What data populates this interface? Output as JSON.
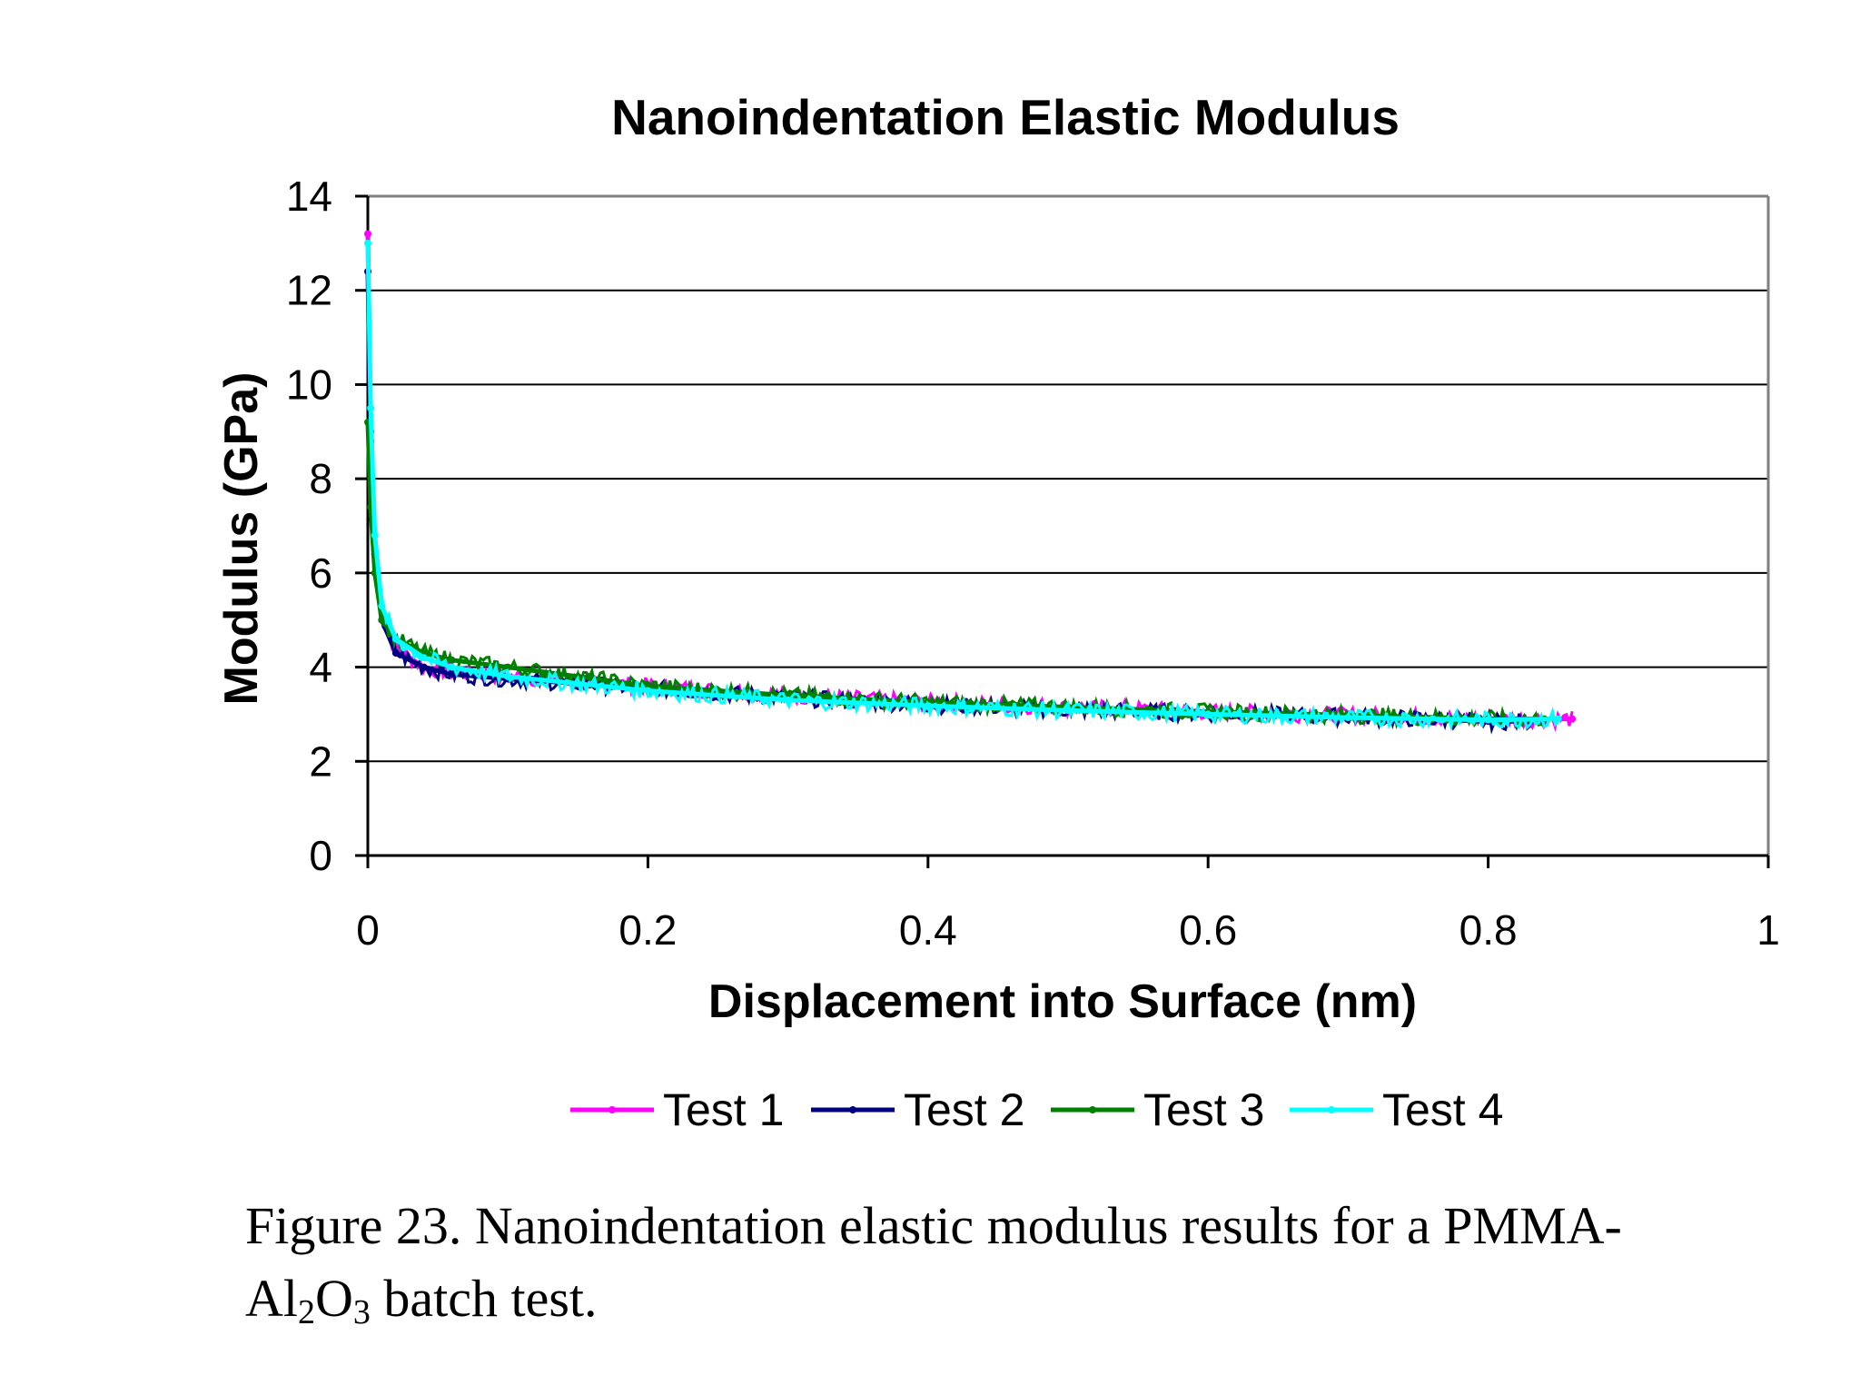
{
  "chart_data": {
    "type": "scatter",
    "title": "Nanoindentation Elastic Modulus",
    "xlabel": "Displacement into Surface (nm)",
    "ylabel": "Modulus (GPa)",
    "xlim": [
      0,
      1
    ],
    "ylim": [
      0,
      14
    ],
    "xticks": [
      0,
      0.2,
      0.4,
      0.6,
      0.8,
      1
    ],
    "xtick_labels": [
      "0",
      "0.2",
      "0.4",
      "0.6",
      "0.8",
      "1"
    ],
    "yticks": [
      0,
      2,
      4,
      6,
      8,
      10,
      12,
      14
    ],
    "ytick_labels": [
      "0",
      "2",
      "4",
      "6",
      "8",
      "10",
      "12",
      "14"
    ],
    "grid": "horizontal",
    "legend_position": "bottom",
    "series": [
      {
        "name": "Test 1",
        "color": "#ff00ff",
        "x": [
          0,
          0.002,
          0.005,
          0.01,
          0.02,
          0.04,
          0.06,
          0.1,
          0.15,
          0.2,
          0.3,
          0.4,
          0.5,
          0.6,
          0.7,
          0.8,
          0.86
        ],
        "y": [
          13.2,
          9.0,
          6.5,
          5.0,
          4.4,
          4.0,
          3.9,
          3.8,
          3.7,
          3.6,
          3.4,
          3.25,
          3.15,
          3.05,
          2.98,
          2.9,
          2.9
        ]
      },
      {
        "name": "Test 2",
        "color": "#000080",
        "x": [
          0,
          0.002,
          0.005,
          0.01,
          0.02,
          0.04,
          0.06,
          0.1,
          0.15,
          0.2,
          0.3,
          0.4,
          0.5,
          0.6,
          0.7,
          0.8,
          0.83
        ],
        "y": [
          12.4,
          8.8,
          6.4,
          5.0,
          4.3,
          4.0,
          3.85,
          3.75,
          3.65,
          3.55,
          3.35,
          3.2,
          3.1,
          3.02,
          2.95,
          2.85,
          2.85
        ]
      },
      {
        "name": "Test 3",
        "color": "#008000",
        "x": [
          0,
          0.002,
          0.005,
          0.01,
          0.02,
          0.04,
          0.06,
          0.1,
          0.15,
          0.2,
          0.3,
          0.4,
          0.5,
          0.6,
          0.7,
          0.8,
          0.84
        ],
        "y": [
          9.2,
          7.4,
          6.0,
          5.0,
          4.6,
          4.3,
          4.15,
          4.0,
          3.8,
          3.6,
          3.4,
          3.25,
          3.15,
          3.05,
          2.98,
          2.9,
          2.9
        ]
      },
      {
        "name": "Test 4",
        "color": "#00ffff",
        "x": [
          0,
          0.002,
          0.005,
          0.01,
          0.02,
          0.04,
          0.06,
          0.1,
          0.15,
          0.2,
          0.3,
          0.4,
          0.5,
          0.6,
          0.7,
          0.8,
          0.85
        ],
        "y": [
          13.0,
          9.5,
          6.8,
          5.3,
          4.6,
          4.2,
          4.0,
          3.8,
          3.65,
          3.5,
          3.3,
          3.18,
          3.08,
          3.0,
          2.93,
          2.88,
          2.9
        ]
      }
    ]
  },
  "caption": {
    "prefix": "Figure 23. Nanoindentation elastic modulus results for a PMMA-",
    "al": "Al",
    "sub2": "2",
    "o": "O",
    "sub3": "3",
    "suffix": " batch test."
  }
}
